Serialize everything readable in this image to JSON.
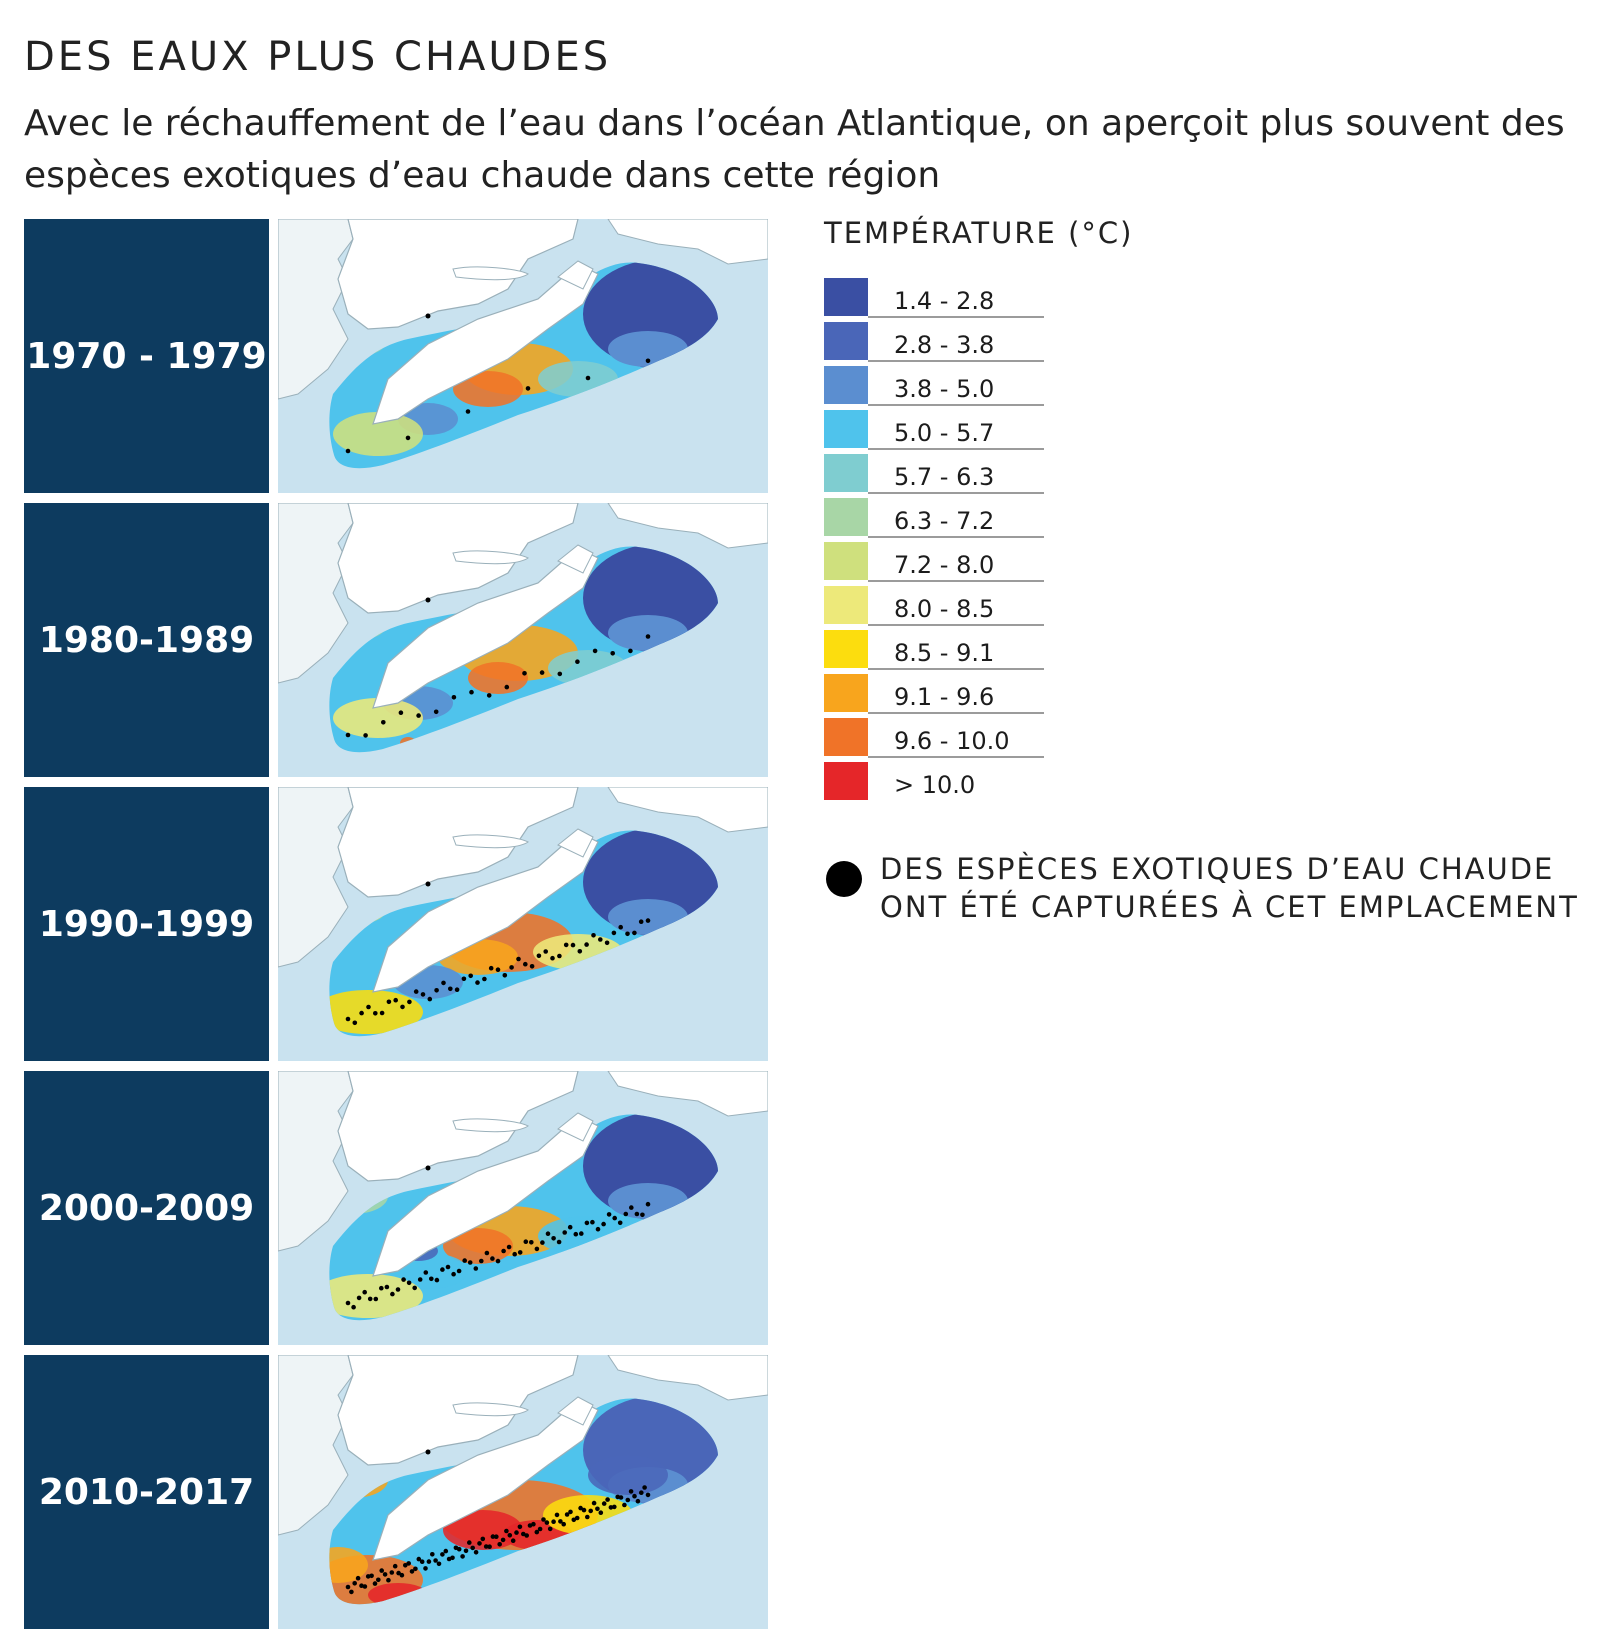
{
  "header": {
    "title": "DES EAUX PLUS CHAUDES",
    "subtitle": "Avec le réchauffement de l’eau dans l’océan Atlantique, on aperçoit plus souvent des espèces exotiques d’eau chaude dans cette région"
  },
  "decades": [
    {
      "label": "1970 - 1979"
    },
    {
      "label": "1980-1989"
    },
    {
      "label": "1990-1999"
    },
    {
      "label": "2000-2009"
    },
    {
      "label": "2010-2017"
    }
  ],
  "legend": {
    "title": "TEMPÉRATURE (°C)",
    "items": [
      {
        "range": "1.4 - 2.8",
        "color": "#3a4fa3"
      },
      {
        "range": "2.8 - 3.8",
        "color": "#4a66b8"
      },
      {
        "range": "3.8 - 5.0",
        "color": "#5b8ed0"
      },
      {
        "range": "5.0 - 5.7",
        "color": "#4fc3ec"
      },
      {
        "range": "5.7 - 6.3",
        "color": "#7fcdd0"
      },
      {
        "range": "6.3 - 7.2",
        "color": "#a8d6a6"
      },
      {
        "range": "7.2 - 8.0",
        "color": "#cfe07d"
      },
      {
        "range": "8.0 - 8.5",
        "color": "#ede97a"
      },
      {
        "range": "8.5 - 9.1",
        "color": "#fcdd0e"
      },
      {
        "range": "9.1 - 9.6",
        "color": "#f8a51d"
      },
      {
        "range": "9.6 - 10.0",
        "color": "#f07328"
      },
      {
        "range": "> 10.0",
        "color": "#e52629"
      }
    ]
  },
  "note": {
    "text": "DES ESPÈCES EXOTIQUES D’EAU CHAUDE ONT ÉTÉ CAPTURÉES À CET EMPLACEMENT",
    "dot_color": "#000000"
  },
  "map_colors": {
    "ocean": "#c9e2ef",
    "land": "#ffffff",
    "coast": "#9ab0ba",
    "west_land": "#eef4f6"
  }
}
